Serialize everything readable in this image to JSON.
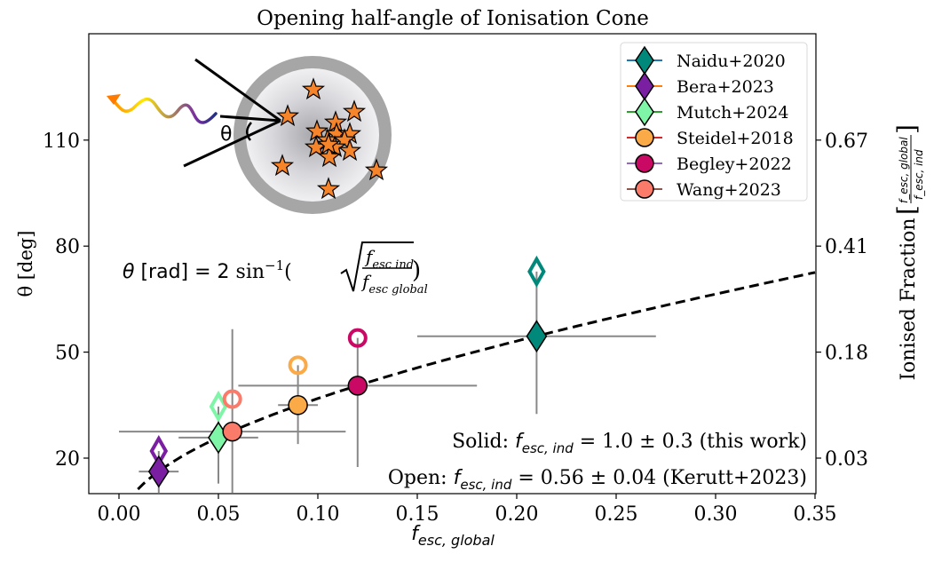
{
  "chart_data": {
    "type": "scatter",
    "title": "Opening half-angle of Ionisation Cone",
    "xlabel": "f_esc,global",
    "xlabel_parts": {
      "base": "f",
      "sub": "esc, global"
    },
    "ylabel": "θ [deg]",
    "y2label": "Ionised Fraction",
    "y2label_bracket": {
      "num": "f_esc, global",
      "den": "f_esc, ind"
    },
    "xlim": [
      -0.0125,
      0.35
    ],
    "ylim": [
      10,
      140
    ],
    "xticks": [
      0.0,
      0.05,
      0.1,
      0.15,
      0.2,
      0.25,
      0.3,
      0.35
    ],
    "xtick_labels": [
      "0.00",
      "0.05",
      "0.10",
      "0.15",
      "0.20",
      "0.25",
      "0.30",
      "0.35"
    ],
    "yticks": [
      20,
      50,
      80,
      110
    ],
    "ytick_labels": [
      "20",
      "50",
      "80",
      "110"
    ],
    "y2ticks_at_theta": [
      20,
      50,
      80,
      110
    ],
    "y2tick_labels": [
      "0.03",
      "0.18",
      "0.41",
      "0.67"
    ],
    "grid": false,
    "legend_position": "top-right",
    "model_curve": {
      "style": "dashed",
      "color": "#000000",
      "f_esc_ind": 1.0,
      "formula": "theta_deg = 2*asin(sqrt(f_esc_global / f_esc_ind))",
      "x_range": [
        0.0095,
        0.35
      ]
    },
    "series": [
      {
        "name": "Naidu+2020",
        "marker": "diamond",
        "color": "#00897b",
        "legend_line": "#1f77b4",
        "x": 0.21,
        "x_err": [
          0.06,
          0.06
        ],
        "y_solid": 54.5,
        "y_err": [
          22,
          0
        ],
        "y_open": 72.8
      },
      {
        "name": "Bera+2023",
        "marker": "diamond",
        "color": "#7b1fa2",
        "legend_line": "#ff7f0e",
        "x": 0.02,
        "x_err": [
          0.01,
          0.01
        ],
        "y_solid": 16.2,
        "y_err": [
          7,
          0
        ],
        "y_open": 22.0
      },
      {
        "name": "Mutch+2024",
        "marker": "diamond",
        "color": "#7ff5a8",
        "legend_line": "#2ca02c",
        "x": 0.05,
        "x_err": [
          0.02,
          0.02
        ],
        "y_solid": 25.8,
        "y_err": [
          13,
          0
        ],
        "y_open": 34.6
      },
      {
        "name": "Steidel+2018",
        "marker": "circle",
        "color": "#fbaa48",
        "legend_line": "#d62728",
        "x": 0.09,
        "x_err": [
          0.01,
          0.01
        ],
        "y_solid": 35.0,
        "y_err": [
          11,
          0
        ],
        "y_open": 46.3
      },
      {
        "name": "Begley+2022",
        "marker": "circle",
        "color": "#c90963",
        "legend_line": "#9467bd",
        "x": 0.12,
        "x_err": [
          0.06,
          0.06
        ],
        "y_solid": 40.5,
        "y_err": [
          23,
          0
        ],
        "y_open": 54.0
      },
      {
        "name": "Wang+2023",
        "marker": "circle",
        "color": "#fb7b6b",
        "legend_line": "#8c564b",
        "x": 0.057,
        "x_err": [
          0.057,
          0.057
        ],
        "y_solid": 27.5,
        "y_err": [
          30,
          29
        ],
        "y_open": 36.7
      }
    ],
    "annotations": {
      "solid": {
        "prefix": "Solid: ",
        "sym": "f",
        "sub": "esc, ind",
        "suffix": " = 1.0 ± 0.3 (this work)"
      },
      "open": {
        "prefix": "Open: ",
        "sym": "f",
        "sub": "esc, ind",
        "suffix": " = 0.56 ± 0.04 (Kerutt+2023)"
      },
      "formula": {
        "lhs": "θ",
        "unit": " [rad] = 2 ",
        "fn": "sin",
        "exp": "−1",
        "num_sym": "f",
        "num_sub": "esc ind",
        "den_sym": "f",
        "den_sub": "esc global"
      },
      "inset_label": "θ"
    }
  }
}
